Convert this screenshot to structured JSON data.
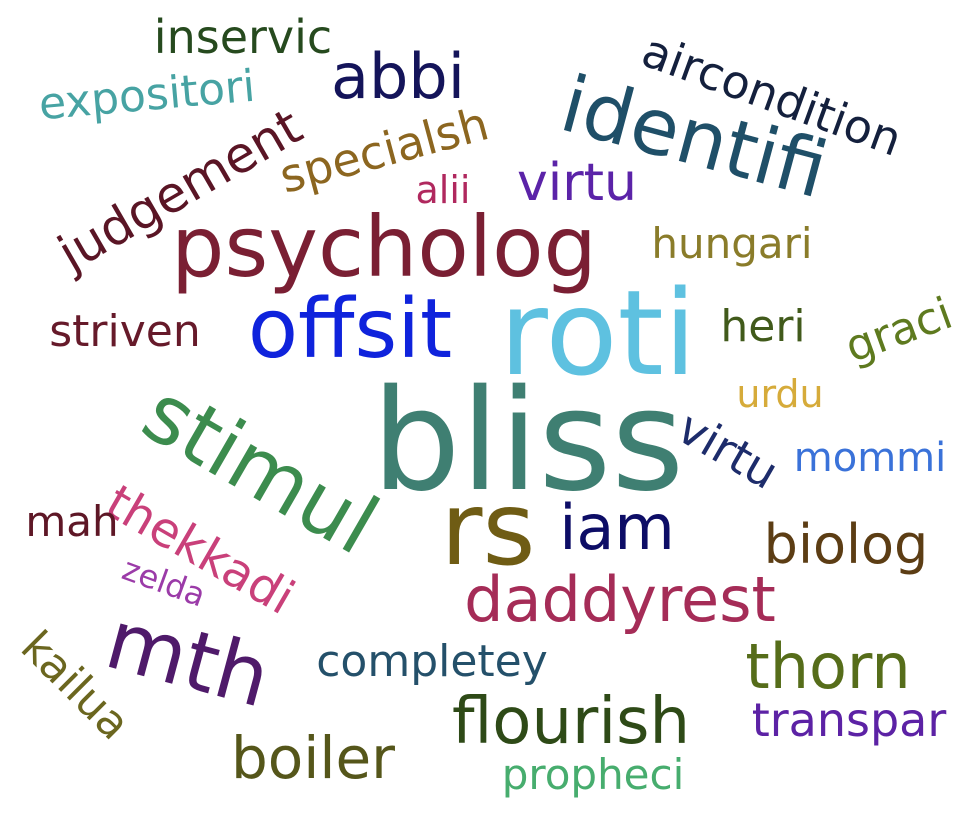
{
  "words": {
    "bliss": {
      "text": "bliss",
      "color": "#3f7f72"
    },
    "roti": {
      "text": "roti",
      "color": "#5ec1e0"
    },
    "rs": {
      "text": "rs",
      "color": "#6f5c14"
    },
    "psycholog": {
      "text": "psycholog",
      "color": "#7a1f33"
    },
    "offsit": {
      "text": "offsit",
      "color": "#0f23dc"
    },
    "stimul": {
      "text": "stimul",
      "color": "#3c8c4e"
    },
    "identifi": {
      "text": "identifi",
      "color": "#1f4f68"
    },
    "mth": {
      "text": "mth",
      "color": "#4f1a6a"
    },
    "flourish": {
      "text": "flourish",
      "color": "#2e4a17"
    },
    "daddyrest": {
      "text": "daddyrest",
      "color": "#a52c57"
    },
    "iam": {
      "text": "iam",
      "color": "#0d0d66"
    },
    "thorn": {
      "text": "thorn",
      "color": "#566d1a"
    },
    "abbi": {
      "text": "abbi",
      "color": "#14145a"
    },
    "boiler": {
      "text": "boiler",
      "color": "#55561a"
    },
    "judgement": {
      "text": "judgement",
      "color": "#5a1525"
    },
    "thekkadi": {
      "text": "thekkadi",
      "color": "#c9407a"
    },
    "aircondition": {
      "text": "aircondition",
      "color": "#14203d"
    },
    "virtu_1": {
      "text": "virtu",
      "color": "#5b23a8"
    },
    "virtu_2": {
      "text": "virtu",
      "color": "#1d2c6b"
    },
    "biolog": {
      "text": "biolog",
      "color": "#5c3d14"
    },
    "completey": {
      "text": "completey",
      "color": "#24506a"
    },
    "specialsh": {
      "text": "specialsh",
      "color": "#8c6620"
    },
    "inservic": {
      "text": "inservic",
      "color": "#264a1e"
    },
    "transpar": {
      "text": "transpar",
      "color": "#5c22a5"
    },
    "heri": {
      "text": "heri",
      "color": "#415a1b"
    },
    "graci": {
      "text": "graci",
      "color": "#5e7a1f"
    },
    "hungari": {
      "text": "hungari",
      "color": "#8a7c2a"
    },
    "striven": {
      "text": "striven",
      "color": "#661a2a"
    },
    "expositori": {
      "text": "expositori",
      "color": "#47a3a3"
    },
    "propheci": {
      "text": "propheci",
      "color": "#47ad6e"
    },
    "mommi": {
      "text": "mommi",
      "color": "#3a72d9"
    },
    "urdu": {
      "text": "urdu",
      "color": "#d6ab3a"
    },
    "mah": {
      "text": "mah",
      "color": "#5e1726"
    },
    "kailua": {
      "text": "kailua",
      "color": "#6b661f"
    },
    "zelda": {
      "text": "zelda",
      "color": "#9b3ba8"
    },
    "alii": {
      "text": "alii",
      "color": "#b0285e"
    }
  }
}
